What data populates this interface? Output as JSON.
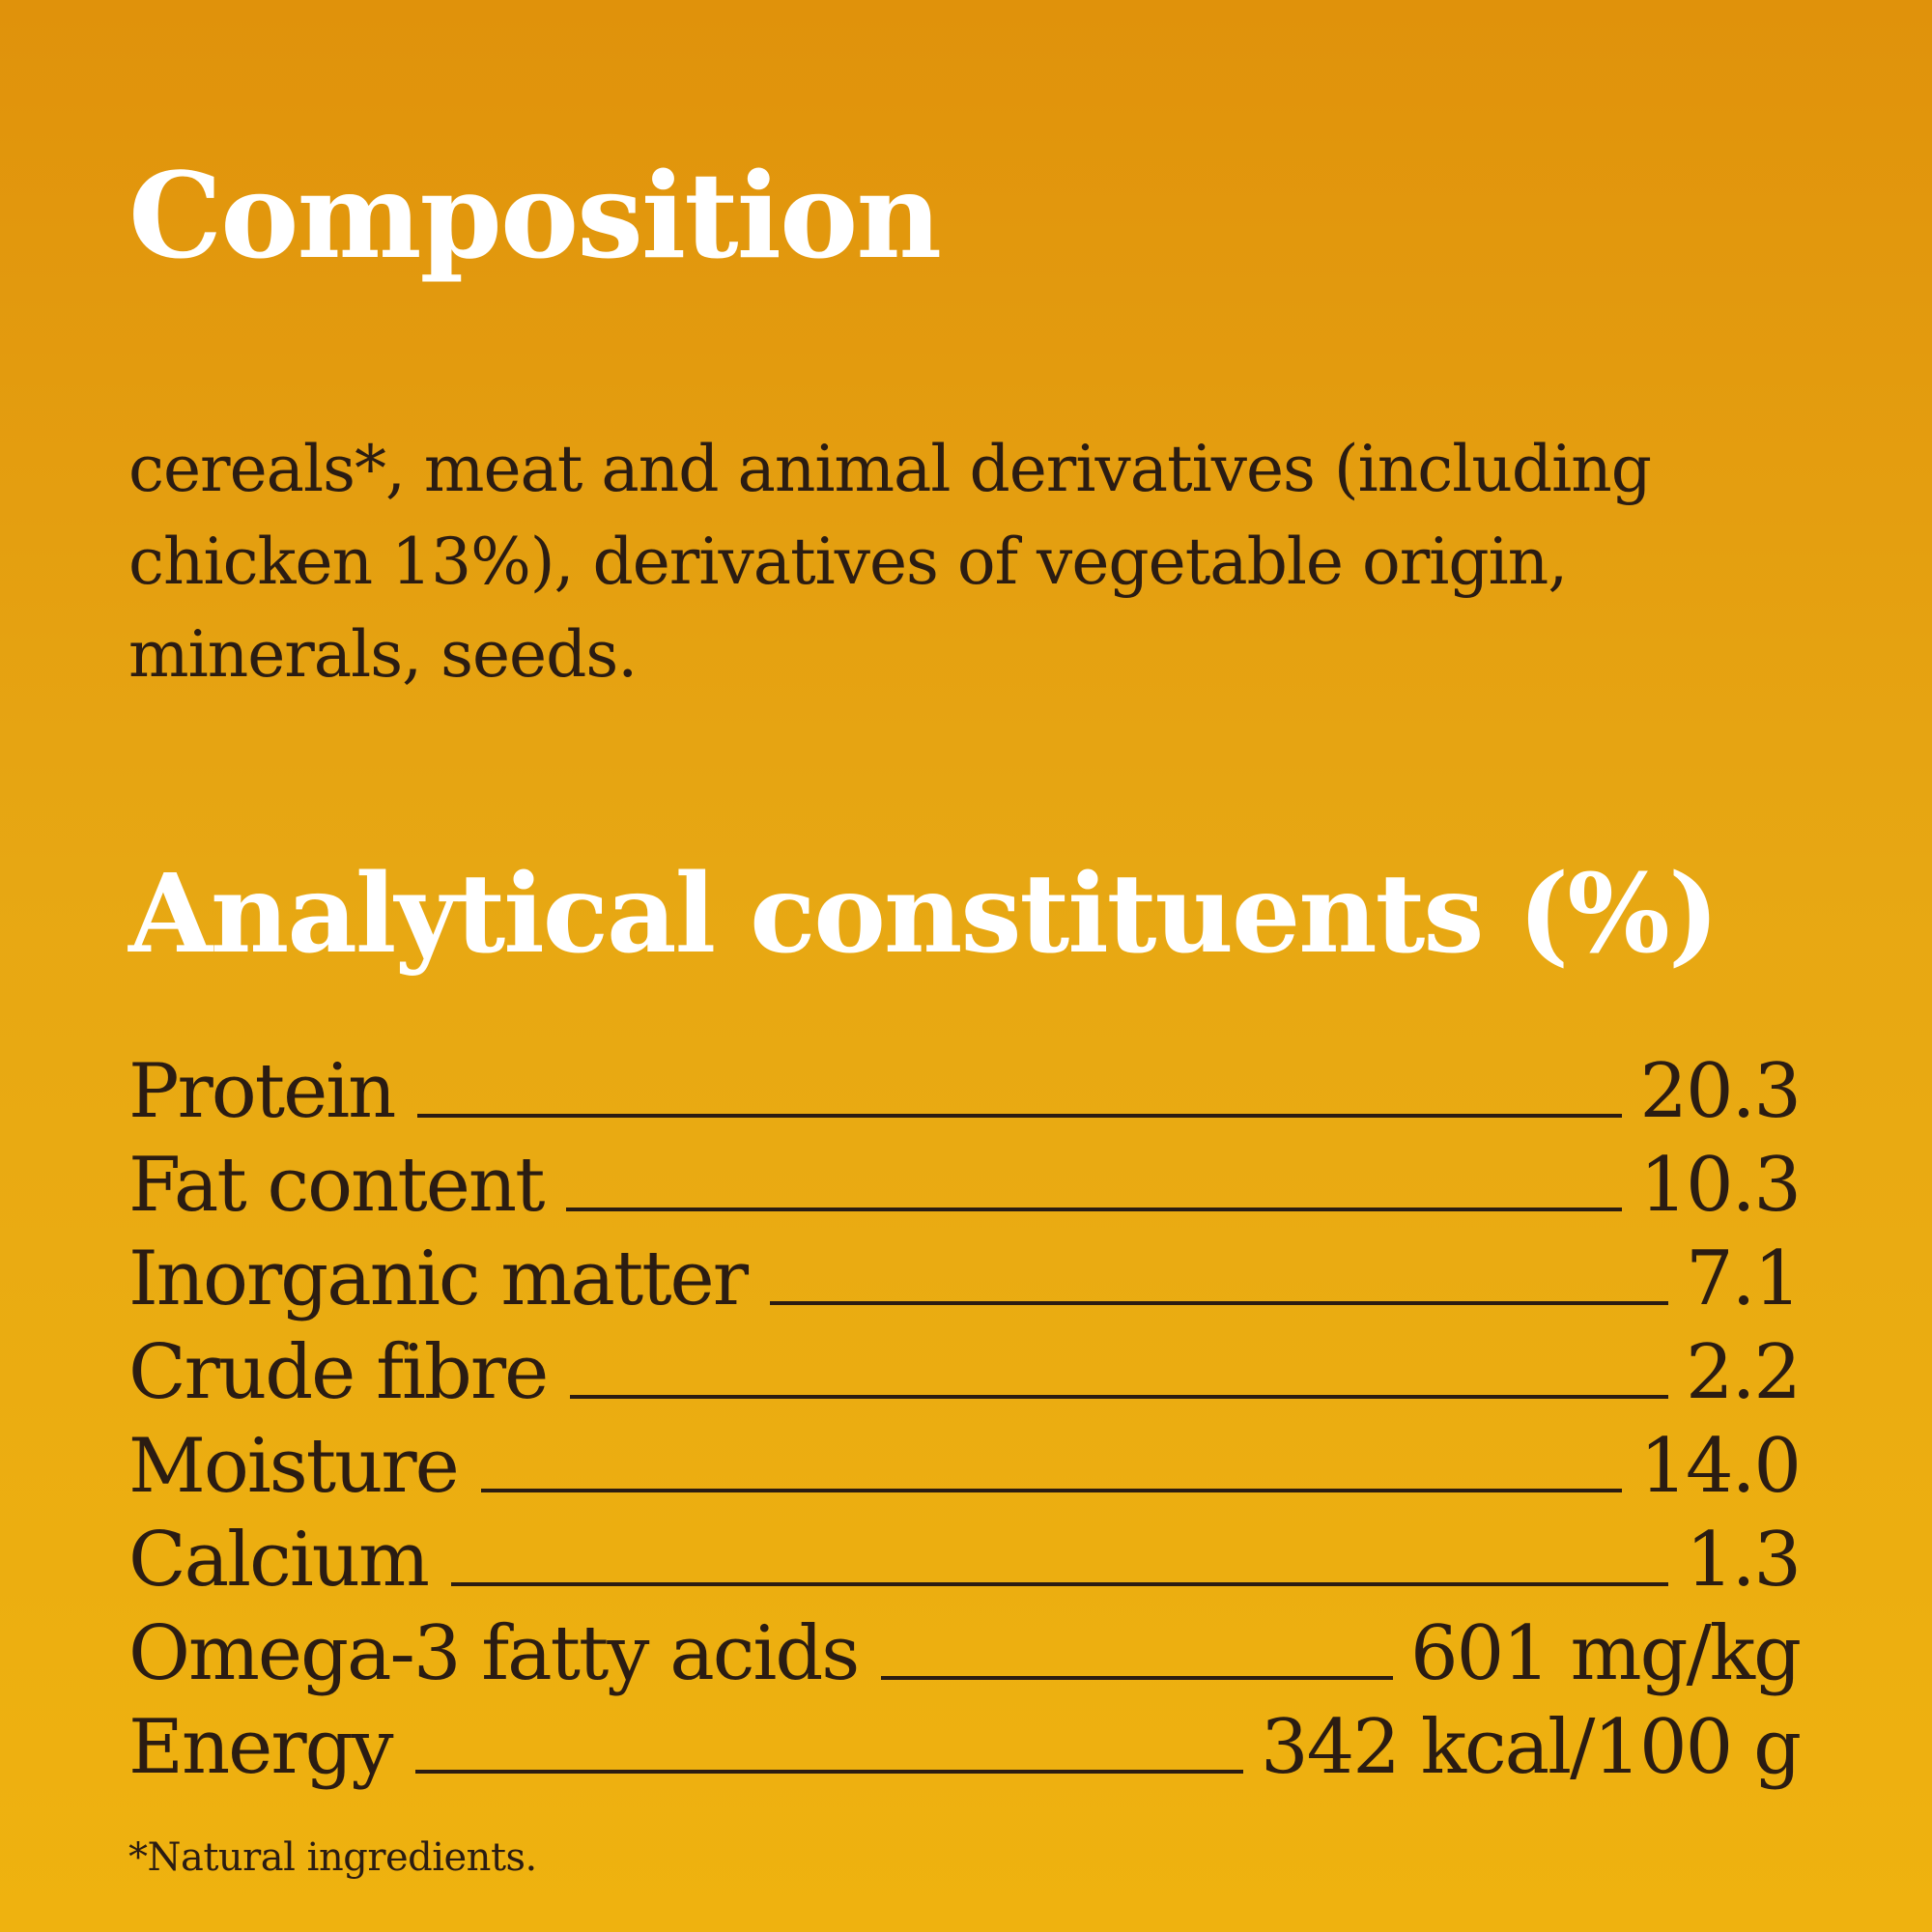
{
  "colors": {
    "background_top": "#e0920b",
    "background_bottom": "#efb20f",
    "heading_text": "#ffffff",
    "body_text": "#2b1c12"
  },
  "composition": {
    "title": "Composition",
    "text": "cereals*, meat and animal derivatives (including chicken 13%), derivatives of vegetable origin, minerals, seeds."
  },
  "analytical": {
    "title": "Analytical constituents (%)",
    "rows": [
      {
        "name": "Protein",
        "value": "20.3"
      },
      {
        "name": "Fat content",
        "value": "10.3"
      },
      {
        "name": "Inorganic matter",
        "value": "7.1"
      },
      {
        "name": "Crude fibre",
        "value": "2.2"
      },
      {
        "name": "Moisture",
        "value": "14.0"
      },
      {
        "name": "Calcium",
        "value": "1.3"
      },
      {
        "name": "Omega-3 fatty acids",
        "value": "601 mg/kg"
      },
      {
        "name": "Energy",
        "value": "342 kcal/100 g"
      }
    ]
  },
  "footnote": "*Natural ingredients."
}
